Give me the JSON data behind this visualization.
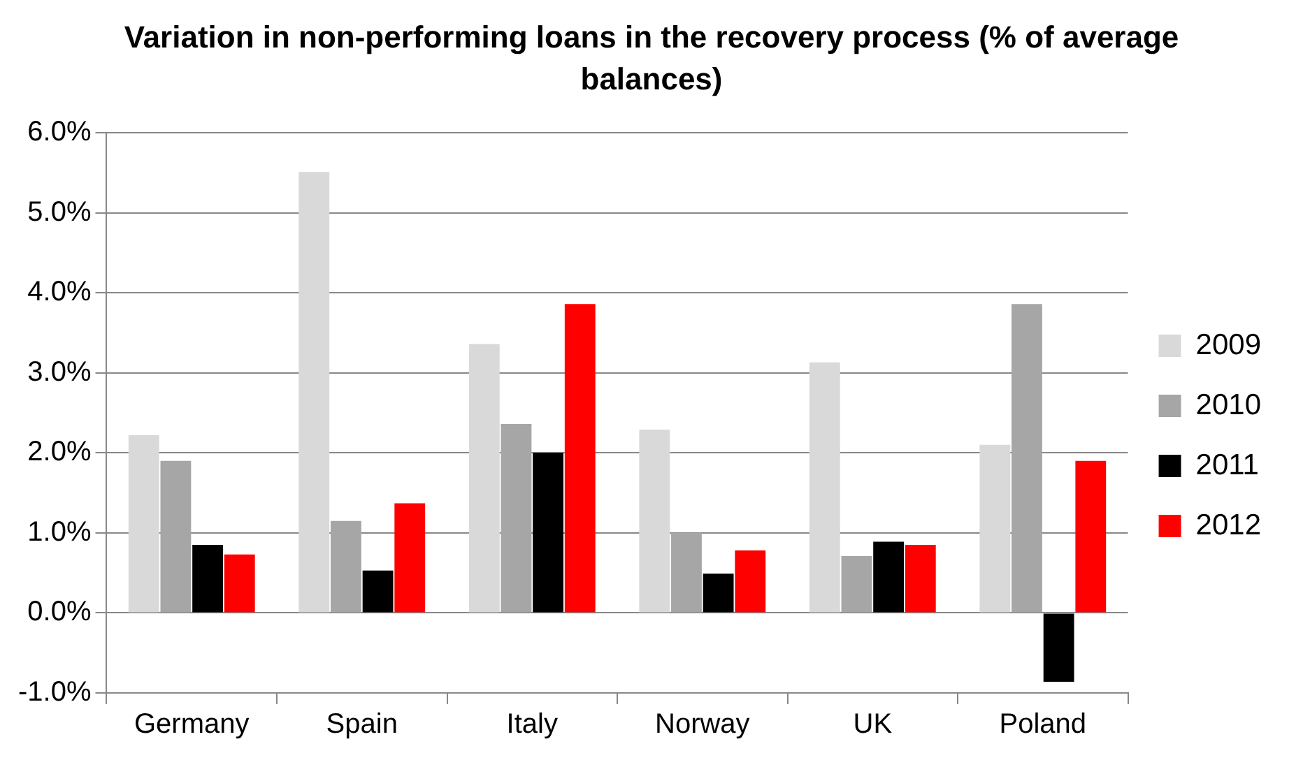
{
  "chart_data": {
    "type": "bar",
    "title": "Variation in non-performing loans in the recovery process (% of average balances)",
    "categories": [
      "Germany",
      "Spain",
      "Italy",
      "Norway",
      "UK",
      "Poland"
    ],
    "series": [
      {
        "name": "2009",
        "color": "#d9d9d9",
        "values": [
          2.22,
          5.51,
          3.36,
          2.29,
          3.13,
          2.1
        ]
      },
      {
        "name": "2010",
        "color": "#a6a6a6",
        "values": [
          1.9,
          1.15,
          2.36,
          1.0,
          0.71,
          3.86
        ]
      },
      {
        "name": "2011",
        "color": "#000000",
        "values": [
          0.85,
          0.53,
          2.0,
          0.49,
          0.89,
          -0.86
        ]
      },
      {
        "name": "2012",
        "color": "#ff0000",
        "values": [
          0.73,
          1.37,
          3.86,
          0.78,
          0.85,
          1.9
        ]
      }
    ],
    "ylim": [
      -1,
      6
    ],
    "yticks": [
      {
        "value": -1,
        "label": "-1.0%"
      },
      {
        "value": 0,
        "label": "0.0%"
      },
      {
        "value": 1,
        "label": "1.0%"
      },
      {
        "value": 2,
        "label": "2.0%"
      },
      {
        "value": 3,
        "label": "3.0%"
      },
      {
        "value": 4,
        "label": "4.0%"
      },
      {
        "value": 5,
        "label": "5.0%"
      },
      {
        "value": 6,
        "label": "6.0%"
      }
    ],
    "grid": "y",
    "legend": "right"
  }
}
